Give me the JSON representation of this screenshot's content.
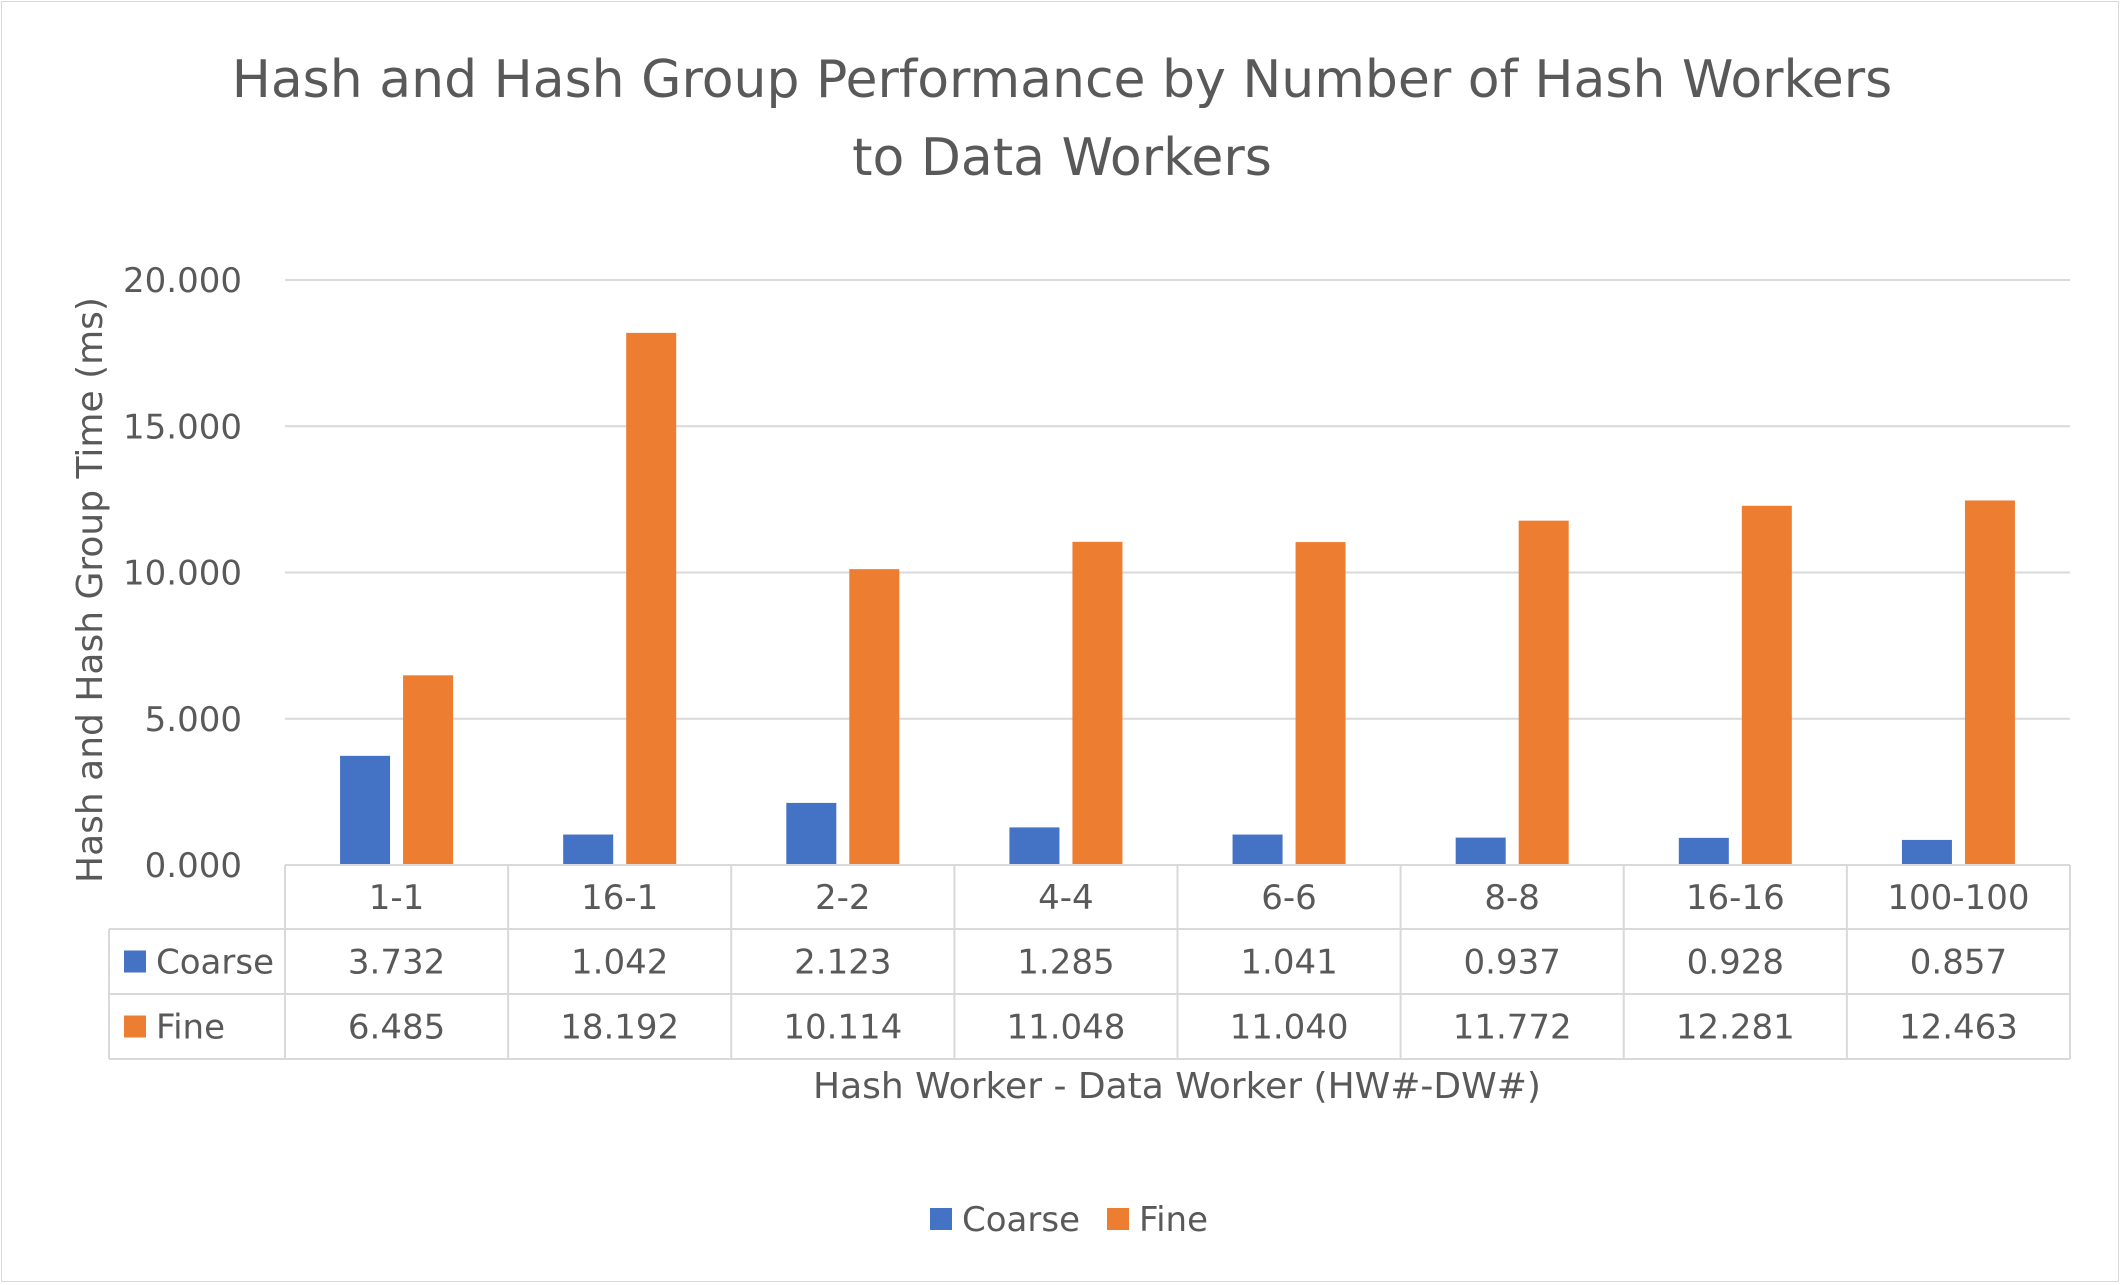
{
  "chart_data": {
    "type": "bar",
    "title_lines": [
      "Hash and Hash Group Performance by Number of Hash Workers",
      "to Data Workers"
    ],
    "xlabel": "Hash Worker - Data Worker (HW#-DW#)",
    "ylabel": "Hash and Hash Group Time (ms)",
    "ylim": [
      0,
      20
    ],
    "yticks": [
      "0.000",
      "5.000",
      "10.000",
      "15.000",
      "20.000"
    ],
    "categories": [
      "1-1",
      "16-1",
      "2-2",
      "4-4",
      "6-6",
      "8-8",
      "16-16",
      "100-100"
    ],
    "series": [
      {
        "name": "Coarse",
        "color": "#4472C4",
        "values": [
          3.732,
          1.042,
          2.123,
          1.285,
          1.041,
          0.937,
          0.928,
          0.857
        ],
        "labels": [
          "3.732",
          "1.042",
          "2.123",
          "1.285",
          "1.041",
          "0.937",
          "0.928",
          "0.857"
        ]
      },
      {
        "name": "Fine",
        "color": "#ED7D31",
        "values": [
          6.485,
          18.192,
          10.114,
          11.048,
          11.04,
          11.772,
          12.281,
          12.463
        ],
        "labels": [
          "6.485",
          "18.192",
          "10.114",
          "11.048",
          "11.040",
          "11.772",
          "12.281",
          "12.463"
        ]
      }
    ],
    "grid": true,
    "data_table": true,
    "legend_position": "bottom"
  }
}
